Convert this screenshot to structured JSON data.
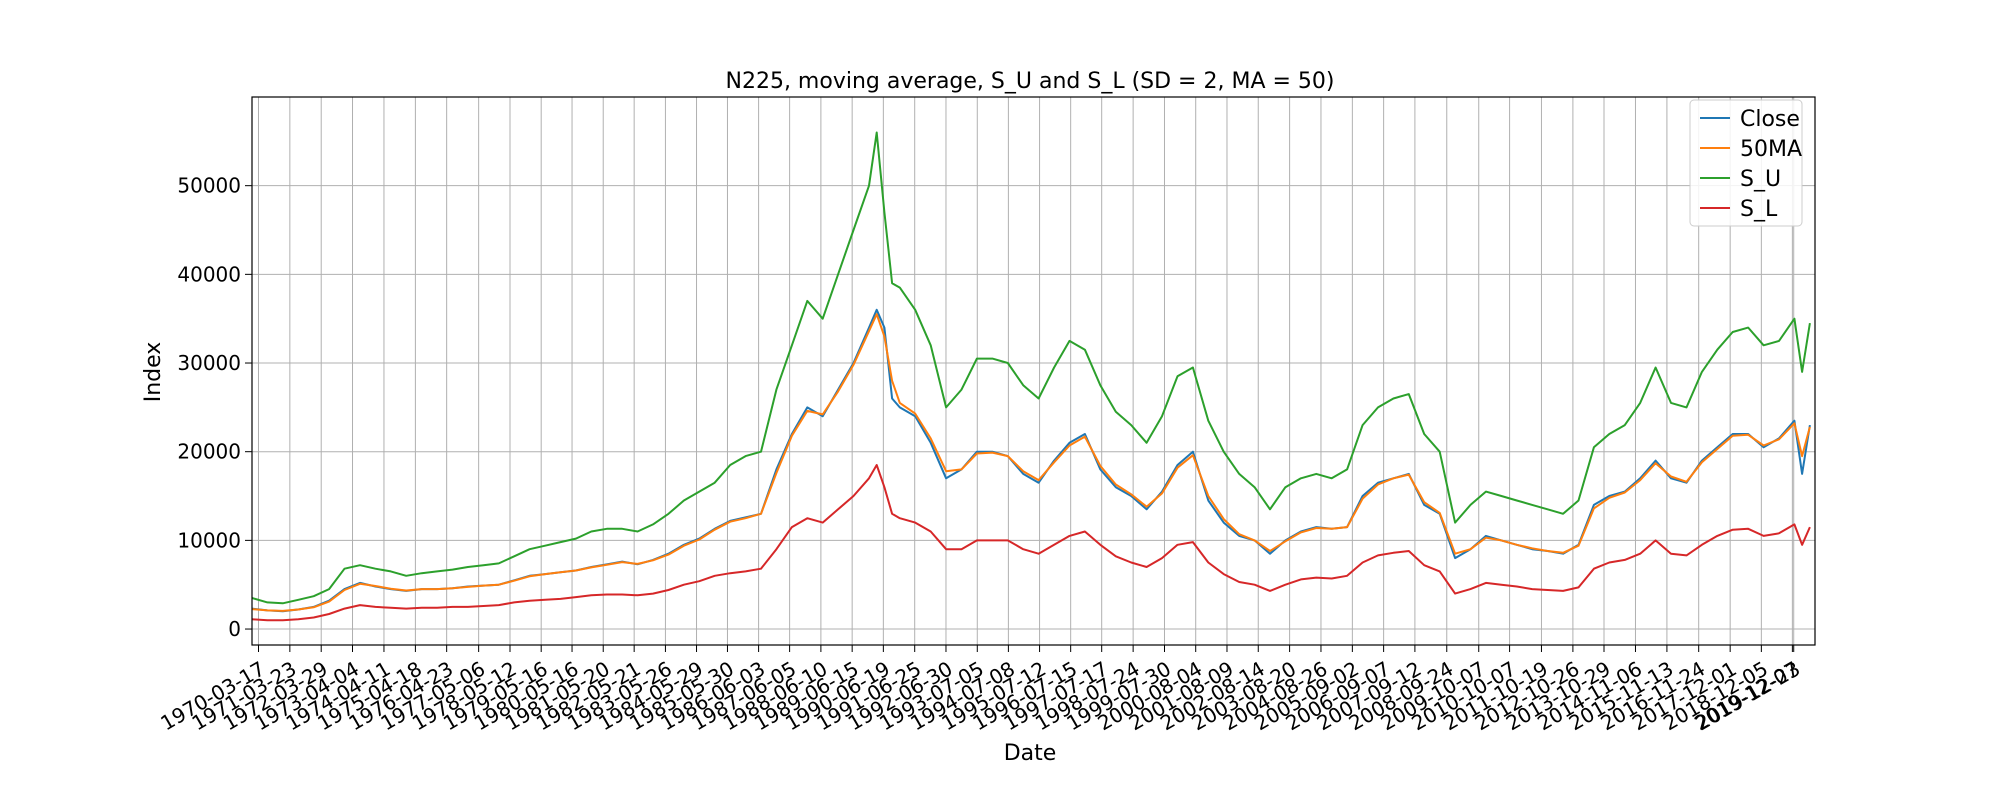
{
  "chart_data": {
    "type": "line",
    "title": "N225, moving average, S_U and S_L (SD = 2, MA = 50)",
    "xlabel": "Date",
    "ylabel": "Index",
    "ylim": [
      -1800,
      60000
    ],
    "yticks": [
      0,
      10000,
      20000,
      30000,
      40000,
      50000
    ],
    "ytick_labels": [
      "0",
      "10000",
      "20000",
      "30000",
      "40000",
      "50000"
    ],
    "xlim": [
      "1970-01-01",
      "2020-09-01"
    ],
    "xticks": [
      "1970-03-17",
      "1971-03-23",
      "1972-03-29",
      "1973-04-04",
      "1974-04-11",
      "1975-04-18",
      "1976-04-23",
      "1977-05-06",
      "1978-05-12",
      "1979-05-16",
      "1980-05-16",
      "1981-05-20",
      "1982-05-21",
      "1983-05-26",
      "1984-05-29",
      "1985-05-30",
      "1986-06-03",
      "1987-06-05",
      "1988-06-10",
      "1989-06-15",
      "1990-06-19",
      "1991-06-25",
      "1992-06-30",
      "1993-07-05",
      "1994-07-08",
      "1995-07-12",
      "1996-07-15",
      "1997-07-17",
      "1998-07-24",
      "1999-07-30",
      "2000-08-04",
      "2001-08-09",
      "2002-08-14",
      "2003-08-20",
      "2004-08-26",
      "2005-09-02",
      "2006-09-07",
      "2007-09-12",
      "2008-09-24",
      "2009-10-07",
      "2010-10-07",
      "2011-10-19",
      "2012-10-26",
      "2013-10-29",
      "2014-11-06",
      "2015-11-13",
      "2016-11-24",
      "2017-12-01",
      "2018-12-05",
      "2019-12-07",
      "2019-12-23"
    ],
    "grid": true,
    "legend_position": "top-right",
    "x": [
      1970.0,
      1970.5,
      1971.0,
      1971.5,
      1972.0,
      1972.5,
      1973.0,
      1973.5,
      1974.0,
      1974.5,
      1975.0,
      1975.5,
      1976.0,
      1976.5,
      1977.0,
      1977.5,
      1978.0,
      1978.5,
      1979.0,
      1979.5,
      1980.0,
      1980.5,
      1981.0,
      1981.5,
      1982.0,
      1982.5,
      1983.0,
      1983.5,
      1984.0,
      1984.5,
      1985.0,
      1985.5,
      1986.0,
      1986.5,
      1987.0,
      1987.5,
      1988.0,
      1988.5,
      1989.0,
      1989.5,
      1990.0,
      1990.25,
      1990.5,
      1990.75,
      1991.0,
      1991.5,
      1992.0,
      1992.5,
      1993.0,
      1993.5,
      1994.0,
      1994.5,
      1995.0,
      1995.5,
      1996.0,
      1996.5,
      1997.0,
      1997.5,
      1998.0,
      1998.5,
      1999.0,
      1999.5,
      2000.0,
      2000.5,
      2001.0,
      2001.5,
      2002.0,
      2002.5,
      2003.0,
      2003.5,
      2004.0,
      2004.5,
      2005.0,
      2005.5,
      2006.0,
      2006.5,
      2007.0,
      2007.5,
      2008.0,
      2008.5,
      2009.0,
      2009.5,
      2010.0,
      2010.5,
      2011.0,
      2011.5,
      2012.0,
      2012.5,
      2013.0,
      2013.5,
      2014.0,
      2014.5,
      2015.0,
      2015.5,
      2016.0,
      2016.5,
      2017.0,
      2017.5,
      2018.0,
      2018.5,
      2019.0,
      2019.5,
      2020.0,
      2020.25,
      2020.5
    ],
    "series": [
      {
        "name": "Close",
        "color": "#1f77b4",
        "values": [
          2300,
          2100,
          2000,
          2200,
          2500,
          3200,
          4500,
          5200,
          4800,
          4500,
          4300,
          4500,
          4500,
          4600,
          4800,
          4900,
          5000,
          5500,
          6000,
          6200,
          6400,
          6600,
          7000,
          7300,
          7600,
          7300,
          7800,
          8500,
          9500,
          10200,
          11300,
          12200,
          12600,
          13000,
          18000,
          22000,
          25000,
          24000,
          27000,
          30000,
          34000,
          36000,
          34000,
          26000,
          25000,
          24000,
          21000,
          17000,
          18000,
          20000,
          20000,
          19500,
          17500,
          16500,
          19000,
          21000,
          22000,
          18000,
          16000,
          15000,
          13500,
          15500,
          18500,
          20000,
          14500,
          12000,
          10500,
          10000,
          8500,
          10000,
          11000,
          11500,
          11300,
          11500,
          15000,
          16500,
          17000,
          17500,
          14000,
          13000,
          8000,
          9000,
          10500,
          10000,
          9500,
          9000,
          8800,
          8500,
          9500,
          14000,
          15000,
          15500,
          17000,
          19000,
          17000,
          16500,
          19000,
          20500,
          22000,
          22000,
          20500,
          21500,
          23500,
          17500,
          23000
        ]
      },
      {
        "name": "50MA",
        "color": "#ff7f0e",
        "values": [
          2250,
          2100,
          2050,
          2200,
          2450,
          3100,
          4400,
          5100,
          4850,
          4550,
          4350,
          4500,
          4500,
          4600,
          4750,
          4900,
          5000,
          5450,
          5950,
          6200,
          6400,
          6600,
          6950,
          7250,
          7550,
          7350,
          7750,
          8400,
          9400,
          10100,
          11200,
          12100,
          12500,
          13000,
          17600,
          21800,
          24600,
          24200,
          26800,
          29800,
          33600,
          35500,
          33000,
          28000,
          25500,
          24300,
          21500,
          17800,
          18000,
          19800,
          19900,
          19500,
          17800,
          16800,
          18800,
          20700,
          21700,
          18400,
          16300,
          15200,
          13800,
          15300,
          18200,
          19600,
          15000,
          12400,
          10700,
          10000,
          8800,
          9900,
          10900,
          11400,
          11300,
          11500,
          14700,
          16300,
          17000,
          17400,
          14300,
          13100,
          8500,
          9000,
          10300,
          10000,
          9500,
          9100,
          8800,
          8600,
          9400,
          13600,
          14800,
          15400,
          16800,
          18700,
          17200,
          16600,
          18800,
          20300,
          21800,
          21900,
          20700,
          21400,
          23200,
          19500,
          22800
        ]
      },
      {
        "name": "S_U",
        "color": "#2ca02c",
        "values": [
          3500,
          3000,
          2900,
          3300,
          3700,
          4500,
          6800,
          7200,
          6800,
          6500,
          6000,
          6300,
          6500,
          6700,
          7000,
          7200,
          7400,
          8200,
          9000,
          9400,
          9800,
          10200,
          11000,
          11300,
          11300,
          11000,
          11800,
          13000,
          14500,
          15500,
          16500,
          18500,
          19500,
          20000,
          27000,
          32000,
          37000,
          35000,
          40000,
          45000,
          50000,
          56000,
          47000,
          39000,
          38500,
          36000,
          32000,
          25000,
          27000,
          30500,
          30500,
          30000,
          27500,
          26000,
          29500,
          32500,
          31500,
          27500,
          24500,
          23000,
          21000,
          24000,
          28500,
          29500,
          23500,
          20000,
          17500,
          16000,
          13500,
          16000,
          17000,
          17500,
          17000,
          18000,
          23000,
          25000,
          26000,
          26500,
          22000,
          20000,
          12000,
          14000,
          15500,
          15000,
          14500,
          14000,
          13500,
          13000,
          14500,
          20500,
          22000,
          23000,
          25500,
          29500,
          25500,
          25000,
          29000,
          31500,
          33500,
          34000,
          32000,
          32500,
          35000,
          29000,
          34500
        ]
      },
      {
        "name": "S_L",
        "color": "#d62728",
        "values": [
          1100,
          1000,
          1000,
          1100,
          1300,
          1700,
          2300,
          2700,
          2500,
          2400,
          2300,
          2400,
          2400,
          2500,
          2500,
          2600,
          2700,
          3000,
          3200,
          3300,
          3400,
          3600,
          3800,
          3900,
          3900,
          3800,
          4000,
          4400,
          5000,
          5400,
          6000,
          6300,
          6500,
          6800,
          9000,
          11500,
          12500,
          12000,
          13500,
          15000,
          17000,
          18500,
          16000,
          13000,
          12500,
          12000,
          11000,
          9000,
          9000,
          10000,
          10000,
          10000,
          9000,
          8500,
          9500,
          10500,
          11000,
          9500,
          8200,
          7500,
          7000,
          8000,
          9500,
          9800,
          7500,
          6200,
          5300,
          5000,
          4300,
          5000,
          5600,
          5800,
          5700,
          6000,
          7500,
          8300,
          8600,
          8800,
          7200,
          6500,
          4000,
          4500,
          5200,
          5000,
          4800,
          4500,
          4400,
          4300,
          4700,
          6800,
          7500,
          7800,
          8500,
          10000,
          8500,
          8300,
          9500,
          10500,
          11200,
          11300,
          10500,
          10800,
          11800,
          9500,
          11500
        ]
      }
    ]
  }
}
